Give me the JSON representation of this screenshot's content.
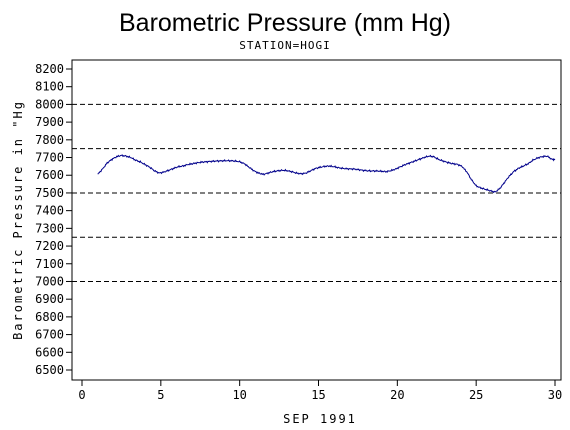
{
  "chart_data": {
    "type": "line",
    "title": "Barometric Pressure (mm Hg)",
    "subtitle": "STATION=HOGI",
    "xlabel": "SEP 1991",
    "ylabel": "Barometric Pressure in \"Hg",
    "xlim": [
      0,
      30
    ],
    "ylim": [
      6450,
      8250
    ],
    "x_ticks": [
      0,
      5,
      10,
      15,
      20,
      25,
      30
    ],
    "y_ticks": [
      6500,
      6600,
      6700,
      6800,
      6900,
      7000,
      7100,
      7200,
      7300,
      7400,
      7500,
      7600,
      7700,
      7800,
      7900,
      8000,
      8100,
      8200
    ],
    "reference_lines": [
      8000,
      7750,
      7500,
      7250,
      7000
    ],
    "grid": false,
    "line_color": "#00008b",
    "series": [
      {
        "x": [
          1.0,
          1.3,
          1.6,
          1.9,
          2.2,
          2.5,
          2.8,
          3.1,
          3.4,
          3.7,
          4.0,
          4.3,
          4.6,
          4.9,
          5.2,
          5.5,
          5.8,
          6.1,
          6.4,
          6.7,
          7.0,
          7.3,
          7.6,
          7.9,
          8.2,
          8.5,
          8.8,
          9.1,
          9.4,
          9.7,
          10.0,
          10.3,
          10.6,
          10.9,
          11.2,
          11.5,
          11.8,
          12.1,
          12.4,
          12.7,
          13.0,
          13.3,
          13.6,
          13.9,
          14.2,
          14.5,
          14.8,
          15.1,
          15.4,
          15.7,
          16.0,
          16.3,
          16.6,
          16.9,
          17.2,
          17.5,
          17.8,
          18.1,
          18.4,
          18.7,
          19.0,
          19.3,
          19.6,
          19.9,
          20.2,
          20.5,
          20.8,
          21.1,
          21.4,
          21.7,
          22.0,
          22.3,
          22.6,
          22.9,
          23.2,
          23.5,
          23.8,
          24.1,
          24.4,
          24.7,
          25.0,
          25.3,
          25.6,
          25.9,
          26.2,
          26.5,
          26.8,
          27.1,
          27.4,
          27.7,
          28.0,
          28.3,
          28.6,
          28.9,
          29.2,
          29.5,
          29.8,
          30.0
        ],
        "values": [
          7605,
          7635,
          7670,
          7690,
          7705,
          7712,
          7708,
          7700,
          7685,
          7675,
          7660,
          7645,
          7625,
          7612,
          7618,
          7628,
          7638,
          7648,
          7652,
          7660,
          7665,
          7670,
          7674,
          7676,
          7678,
          7680,
          7681,
          7682,
          7682,
          7680,
          7676,
          7665,
          7645,
          7625,
          7612,
          7605,
          7612,
          7620,
          7625,
          7628,
          7626,
          7620,
          7612,
          7608,
          7612,
          7625,
          7638,
          7645,
          7650,
          7652,
          7648,
          7642,
          7638,
          7636,
          7635,
          7632,
          7628,
          7625,
          7624,
          7624,
          7622,
          7620,
          7626,
          7635,
          7648,
          7660,
          7670,
          7680,
          7690,
          7700,
          7708,
          7705,
          7690,
          7680,
          7672,
          7665,
          7662,
          7650,
          7620,
          7575,
          7540,
          7528,
          7520,
          7512,
          7505,
          7525,
          7560,
          7595,
          7622,
          7640,
          7652,
          7665,
          7685,
          7698,
          7705,
          7708,
          7690,
          7688
        ]
      }
    ]
  }
}
